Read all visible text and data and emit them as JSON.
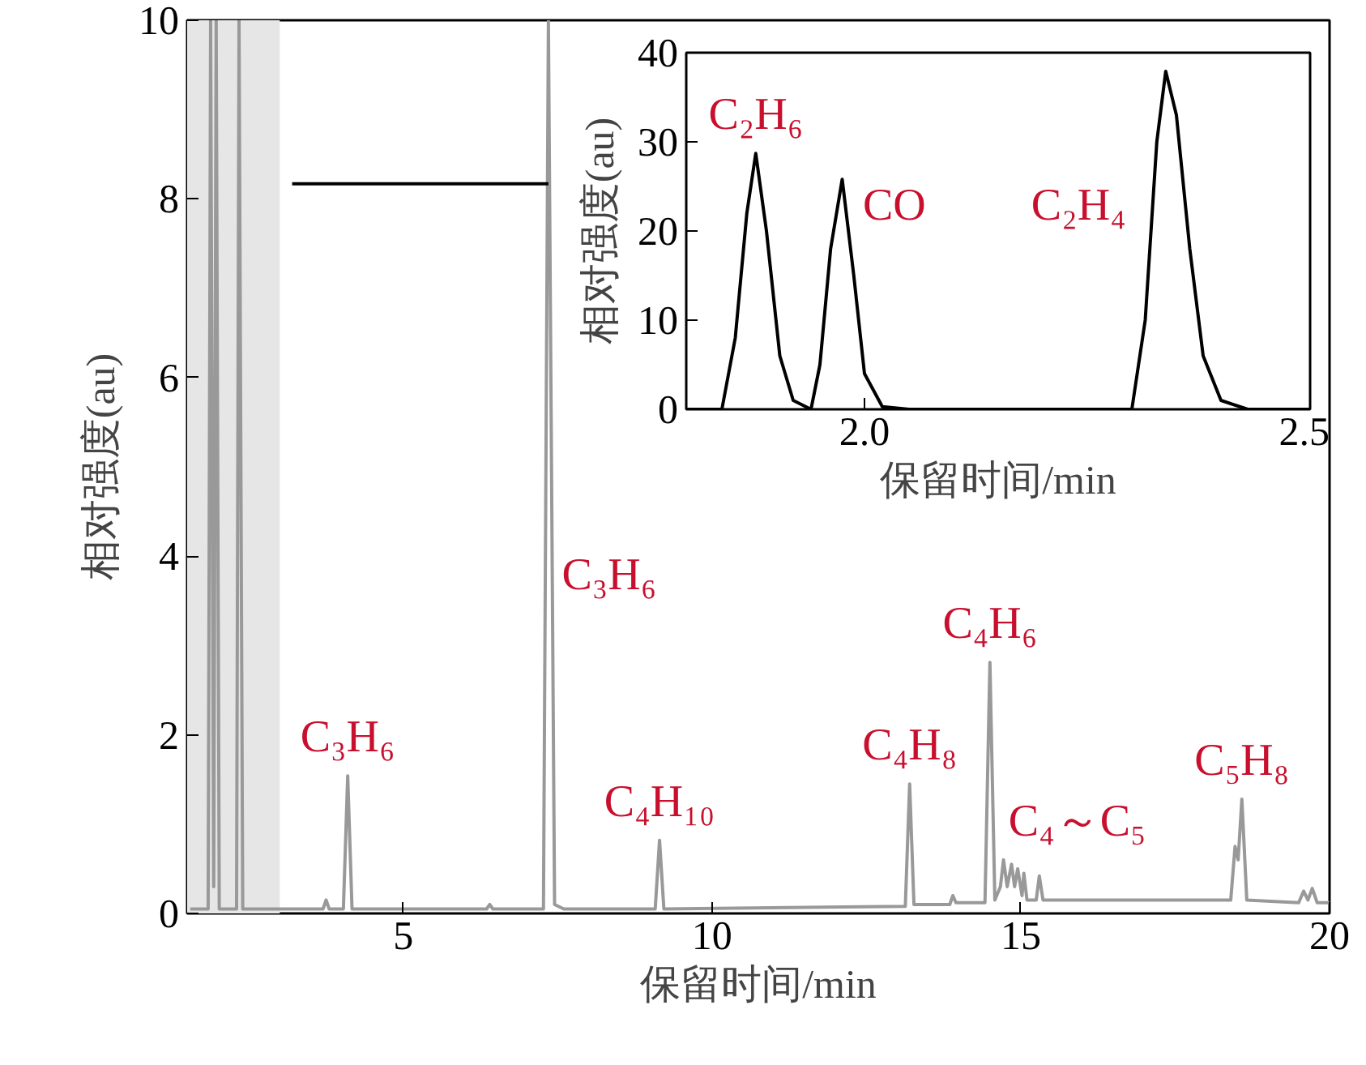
{
  "chart_data": [
    {
      "type": "line",
      "xlabel": "保留时间/min",
      "ylabel": "相对强度(au)",
      "xlim": [
        1.5,
        20
      ],
      "ylim": [
        0,
        10
      ],
      "xticks": [
        5,
        10,
        15,
        20
      ],
      "yticks": [
        0,
        2,
        4,
        6,
        8,
        10
      ],
      "grid": false,
      "series": [
        {
          "color": "#999999",
          "x": [
            1.55,
            1.84,
            1.88,
            1.93,
            1.97,
            2.02,
            2.3,
            2.34,
            2.4,
            3.7,
            3.75,
            3.8,
            4.03,
            4.1,
            4.17,
            6.35,
            6.4,
            6.45,
            7.27,
            7.35,
            7.45,
            7.6,
            9.08,
            9.15,
            9.22,
            13.13,
            13.2,
            13.27,
            13.85,
            13.9,
            13.95,
            14.42,
            14.5,
            14.58,
            14.67,
            14.72,
            14.78,
            14.85,
            14.9,
            14.95,
            15.02,
            15.05,
            15.1,
            15.25,
            15.3,
            15.36,
            17.0,
            18.4,
            18.47,
            18.52,
            18.58,
            18.66,
            19.5,
            19.58,
            19.65,
            19.72,
            19.8,
            20
          ],
          "values": [
            0.05,
            0.05,
            10,
            0.3,
            10,
            0.05,
            0.05,
            10,
            0.05,
            0.05,
            0.15,
            0.05,
            0.05,
            1.54,
            0.05,
            0.05,
            0.1,
            0.05,
            0.05,
            10,
            0.1,
            0.05,
            0.05,
            0.82,
            0.05,
            0.08,
            1.45,
            0.1,
            0.1,
            0.2,
            0.12,
            0.12,
            2.81,
            0.15,
            0.3,
            0.6,
            0.3,
            0.55,
            0.3,
            0.5,
            0.2,
            0.45,
            0.15,
            0.15,
            0.42,
            0.15,
            0.15,
            0.15,
            0.75,
            0.6,
            1.28,
            0.15,
            0.12,
            0.25,
            0.15,
            0.28,
            0.12,
            0.12
          ]
        },
        {
          "type": "line",
          "color": "#000000",
          "x": [
            3.2,
            7.35
          ],
          "values": [
            8.17,
            8.17
          ]
        }
      ],
      "bands": [
        {
          "axis": "x",
          "from": 1.5,
          "to": 3.0,
          "color": "#e6e6e6"
        }
      ],
      "annotations": [
        {
          "text": "C₃H₆",
          "x": 4.1,
          "y": 1.54
        },
        "C₃H₆",
        {
          "text": "C₄H₁₀",
          "x": 9.15,
          "y": 0.82
        },
        {
          "text": "C₄H₈",
          "x": 13.2,
          "y": 1.45
        },
        {
          "text": "C₄H₆",
          "x": 14.5,
          "y": 2.81
        },
        "C₄～C₅",
        {
          "text": "C₅H₈",
          "x": 18.58,
          "y": 1.28
        }
      ]
    },
    {
      "type": "line",
      "xlabel": "保留时间/min",
      "ylabel": "相对强度(au)",
      "xlim": [
        1.8,
        2.5
      ],
      "ylim": [
        0,
        40
      ],
      "xticks": [
        {
          "value": 2,
          "label": "2.0"
        },
        2.5
      ],
      "yticks": [
        0,
        10,
        20,
        30,
        40
      ],
      "grid": false,
      "series": [
        {
          "color": "#000000",
          "x": [
            1.8,
            1.84,
            1.855,
            1.868,
            1.878,
            1.89,
            1.905,
            1.92,
            1.94,
            1.95,
            1.962,
            1.975,
            1.988,
            2.0,
            2.02,
            2.05,
            2.3,
            2.315,
            2.328,
            2.338,
            2.35,
            2.365,
            2.38,
            2.4,
            2.43,
            2.5
          ],
          "values": [
            0,
            0,
            8,
            22,
            28.7,
            20,
            6,
            1,
            0,
            5,
            18,
            25.8,
            15,
            4,
            0.3,
            0,
            0,
            10,
            30,
            37.9,
            33,
            18,
            6,
            1,
            0,
            0
          ]
        }
      ],
      "annotations": [
        {
          "text": "C₂H₆",
          "x": 1.878,
          "y": 28.7
        },
        "CO",
        "C₂H₄"
      ]
    }
  ]
}
